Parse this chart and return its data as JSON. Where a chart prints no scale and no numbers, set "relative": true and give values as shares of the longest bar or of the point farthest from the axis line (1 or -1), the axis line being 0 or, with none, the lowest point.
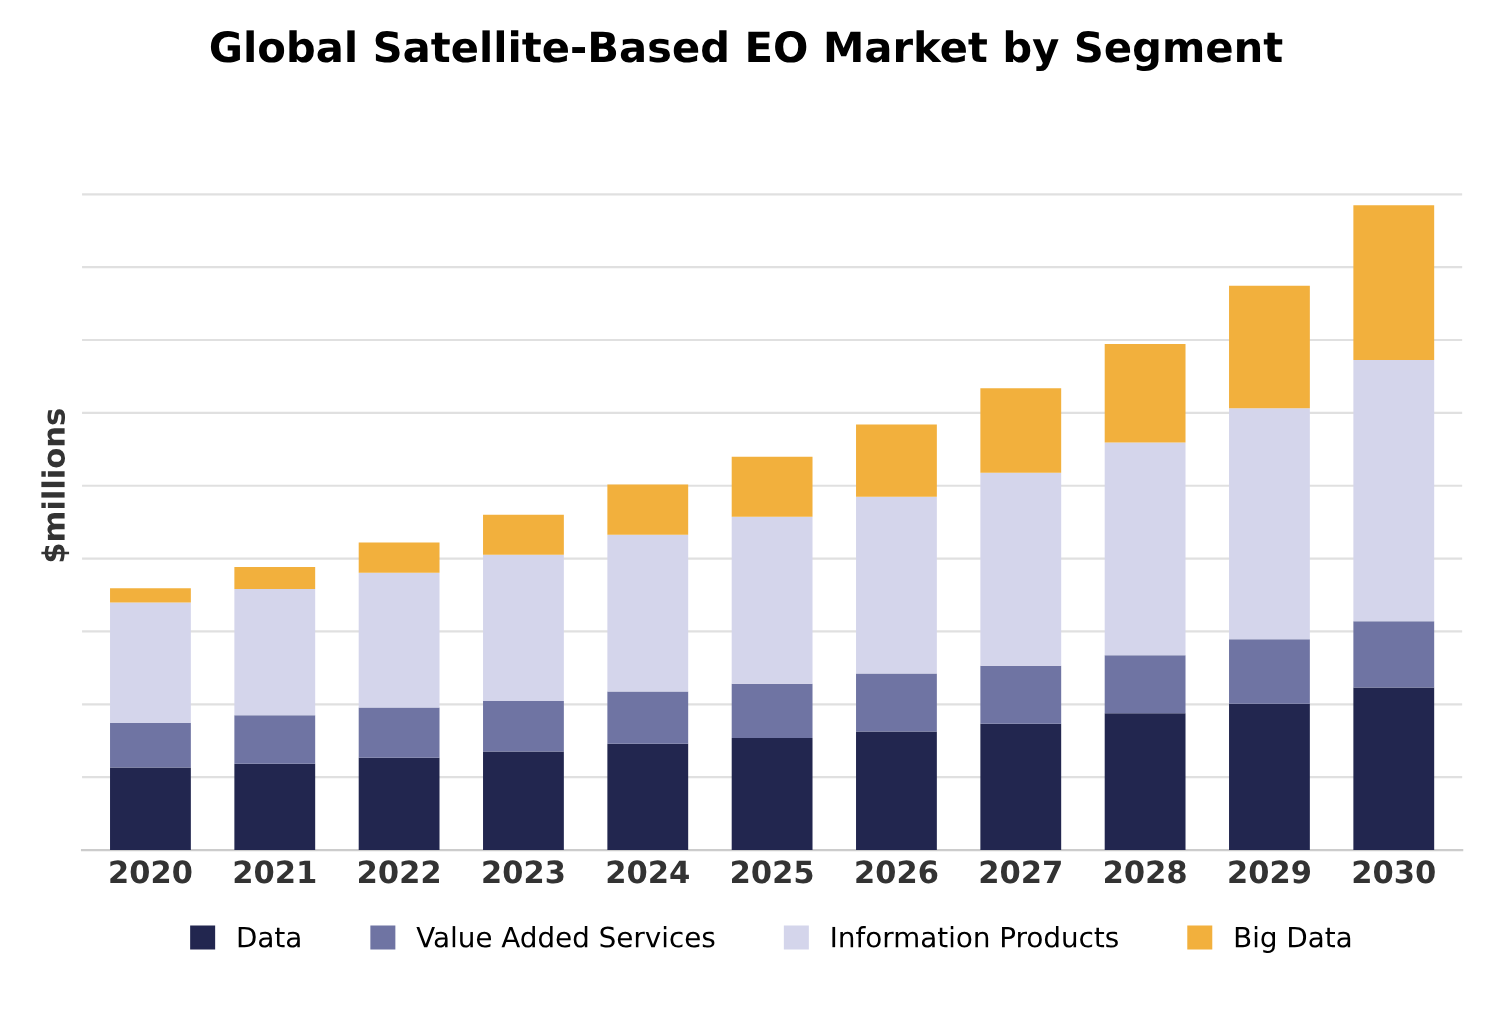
{
  "chart_data": {
    "type": "bar",
    "title": "Global Satellite-Based EO Market by Segment",
    "ylabel": "$millions",
    "relative": true,
    "stacked": true,
    "grid": "y",
    "legend": "bottom",
    "categories": [
      "2020",
      "2021",
      "2022",
      "2023",
      "2024",
      "2025",
      "2026",
      "2027",
      "2028",
      "2029",
      "2030"
    ],
    "series": [
      {
        "name": "Data",
        "color": "#22264f",
        "values": [
          0.128,
          0.134,
          0.143,
          0.153,
          0.165,
          0.174,
          0.184,
          0.196,
          0.212,
          0.227,
          0.252
        ]
      },
      {
        "name": "Value Added Services",
        "color": "#6f74a3",
        "values": [
          0.069,
          0.075,
          0.078,
          0.078,
          0.081,
          0.084,
          0.09,
          0.09,
          0.09,
          0.1,
          0.103
        ]
      },
      {
        "name": "Information Products",
        "color": "#d4d5eb",
        "values": [
          0.187,
          0.196,
          0.209,
          0.227,
          0.243,
          0.259,
          0.274,
          0.299,
          0.33,
          0.358,
          0.405
        ]
      },
      {
        "name": "Big Data",
        "color": "#f2b03d",
        "values": [
          0.022,
          0.034,
          0.047,
          0.062,
          0.078,
          0.093,
          0.112,
          0.131,
          0.153,
          0.19,
          0.24
        ]
      }
    ]
  }
}
